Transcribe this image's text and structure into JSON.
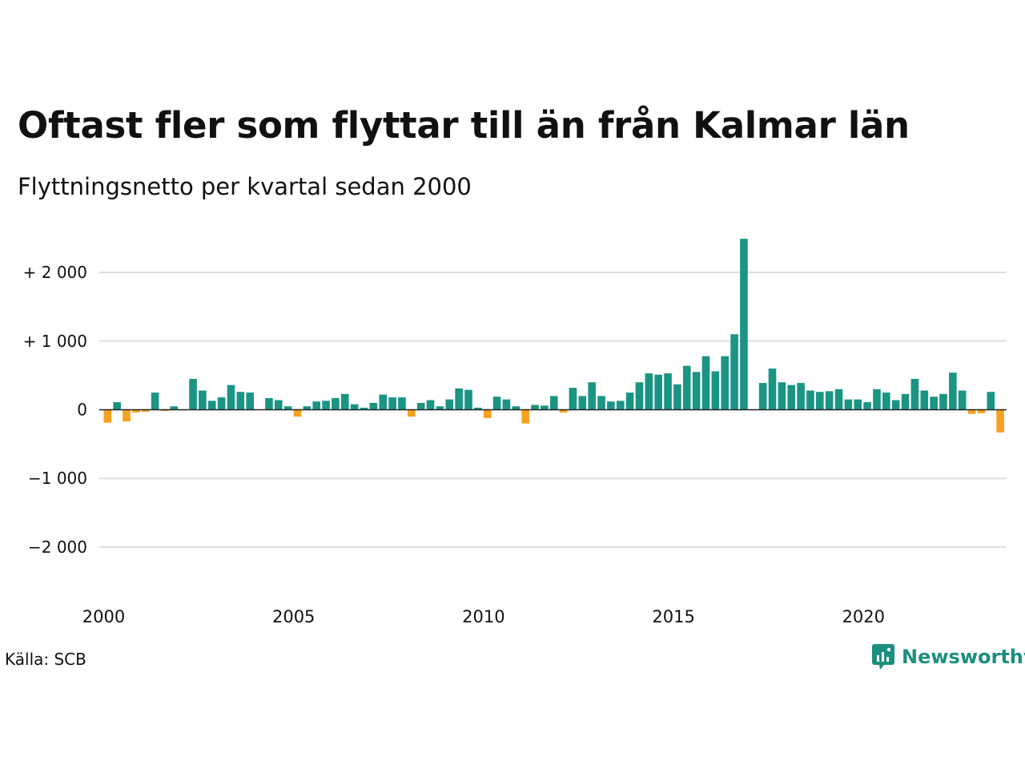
{
  "title": "Oftast fler som flyttar till än från Kalmar län",
  "subtitle": "Flyttningsnetto per kvartal sedan 2000",
  "source": "Källa: SCB",
  "brand": {
    "name": "Newsworthy",
    "logo_icon": "newsworthy-logo-icon"
  },
  "colors": {
    "positive": "#1b9484",
    "negative": "#f5a01e",
    "grid": "#dddddd",
    "zero_line": "#222222",
    "text": "#111111",
    "brand": "#1b8f80"
  },
  "chart_data": {
    "type": "bar",
    "title": "Oftast fler som flyttar till än från Kalmar län",
    "subtitle": "Flyttningsnetto per kvartal sedan 2000",
    "xlabel": "",
    "ylabel": "",
    "ylim": [
      -2600,
      2500
    ],
    "x_start": 2000,
    "periods_per_year": 4,
    "x_ticks": [
      2000,
      2005,
      2010,
      2015,
      2020
    ],
    "x_tick_labels": [
      "2000",
      "2005",
      "2010",
      "2015",
      "2020"
    ],
    "y_ticks": [
      2000,
      1000,
      0,
      -1000,
      -2000
    ],
    "y_tick_labels": [
      "+ 2 000",
      "+ 1 000",
      "0",
      "−1 000",
      "−2 000"
    ],
    "grid": true,
    "legend": "none",
    "series": [
      {
        "values": [
          -190,
          110,
          -170,
          -40,
          -30,
          250,
          -20,
          50,
          -10,
          450,
          280,
          130,
          180,
          360,
          260,
          250,
          0,
          170,
          140,
          50,
          -100,
          50,
          120,
          130,
          170,
          230,
          80,
          30,
          100,
          220,
          180,
          180,
          -100,
          100,
          140,
          50,
          150,
          310,
          290,
          30,
          -120,
          190,
          150,
          50,
          -200,
          70,
          60,
          200,
          -40,
          320,
          200,
          400,
          200,
          120,
          130,
          250,
          400,
          530,
          510,
          530,
          370,
          640,
          550,
          780,
          560,
          780,
          1100,
          2490,
          0,
          390,
          600,
          400,
          360,
          390,
          280,
          260,
          270,
          300,
          150,
          150,
          110,
          300,
          250,
          140,
          230,
          450,
          280,
          190,
          230,
          540,
          280,
          -60,
          -50,
          260,
          -330
        ]
      }
    ]
  }
}
